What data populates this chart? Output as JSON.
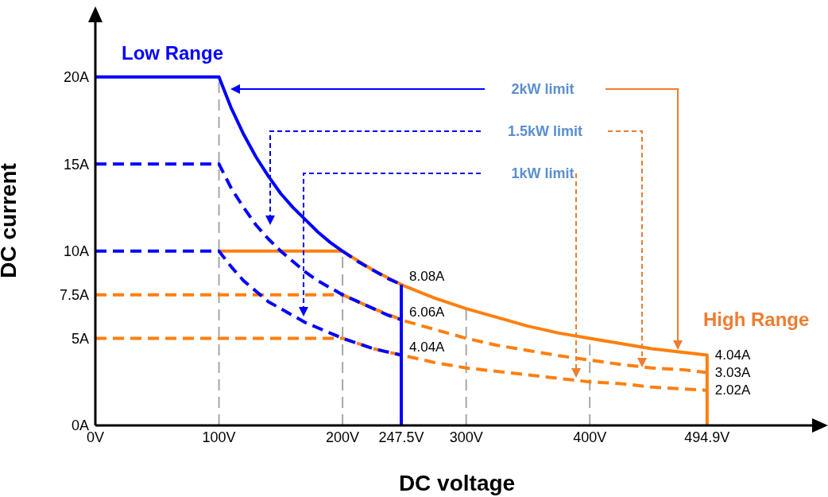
{
  "chart_data": {
    "type": "line",
    "xlabel": "DC voltage",
    "ylabel": "DC current",
    "xlim": [
      0,
      585
    ],
    "ylim": [
      0,
      23.5
    ],
    "xticks": [
      {
        "value": 0,
        "label": "0V"
      },
      {
        "value": 100,
        "label": "100V"
      },
      {
        "value": 200,
        "label": "200V"
      },
      {
        "value": 247.5,
        "label": "247.5V"
      },
      {
        "value": 300,
        "label": "300V"
      },
      {
        "value": 400,
        "label": "400V"
      },
      {
        "value": 494.9,
        "label": "494.9V"
      }
    ],
    "yticks": [
      {
        "value": 0,
        "label": "0A"
      },
      {
        "value": 5,
        "label": "5A"
      },
      {
        "value": 7.5,
        "label": "7.5A"
      },
      {
        "value": 10,
        "label": "10A"
      },
      {
        "value": 15,
        "label": "15A"
      },
      {
        "value": 20,
        "label": "20A"
      }
    ],
    "series": [
      {
        "color": "#ff7f0e",
        "line_style": "solid",
        "x": [
          100,
          200,
          225,
          250,
          275,
          300,
          325,
          350,
          375,
          400,
          425,
          450,
          475,
          494.9,
          494.9
        ],
        "values": [
          10,
          10,
          8.9,
          8,
          7.3,
          6.7,
          6.2,
          5.7,
          5.3,
          5,
          4.7,
          4.4,
          4.2,
          4.04,
          0
        ],
        "value_labels": [
          null,
          null,
          null,
          null,
          null,
          null,
          null,
          null,
          null,
          null,
          null,
          null,
          null,
          "4.04A",
          null
        ]
      },
      {
        "color": "#ff7f0e",
        "line_style": "dashed",
        "x": [
          0,
          200,
          225,
          250,
          275,
          300,
          325,
          350,
          375,
          400,
          425,
          450,
          475,
          494.9
        ],
        "values": [
          7.5,
          7.5,
          6.7,
          6,
          5.5,
          5,
          4.6,
          4.3,
          4,
          3.75,
          3.5,
          3.3,
          3.2,
          3.03
        ],
        "value_labels": [
          null,
          null,
          null,
          null,
          null,
          null,
          null,
          null,
          null,
          null,
          null,
          null,
          null,
          "3.03A"
        ]
      },
      {
        "color": "#ff7f0e",
        "line_style": "dashed",
        "x": [
          0,
          200,
          225,
          250,
          275,
          300,
          325,
          350,
          375,
          400,
          425,
          450,
          475,
          494.9
        ],
        "values": [
          5,
          5,
          4.4,
          4,
          3.6,
          3.3,
          3.1,
          2.9,
          2.7,
          2.5,
          2.4,
          2.2,
          2.1,
          2.02
        ],
        "value_labels": [
          null,
          null,
          null,
          null,
          null,
          null,
          null,
          null,
          null,
          null,
          null,
          null,
          null,
          "2.02A"
        ]
      },
      {
        "color": "#0000ff",
        "line_style": "solid",
        "x": [
          0,
          100,
          110,
          120,
          130,
          140,
          150,
          160,
          170,
          180,
          190,
          200
        ],
        "values": [
          20,
          20,
          18.2,
          16.7,
          15.4,
          14.3,
          13.3,
          12.5,
          11.8,
          11.1,
          10.5,
          10
        ]
      },
      {
        "color": "#0000ff",
        "line_style": "dashed",
        "x": [
          200,
          212.5,
          225,
          237.5,
          247.5
        ],
        "values": [
          10,
          9.4,
          8.9,
          8.4,
          8.08
        ],
        "value_labels": [
          null,
          null,
          null,
          null,
          "8.08A"
        ]
      },
      {
        "color": "#0000ff",
        "line_style": "solid",
        "x": [
          247.5,
          247.5
        ],
        "values": [
          8.08,
          0
        ]
      },
      {
        "color": "#0000ff",
        "line_style": "dashed",
        "x": [
          0,
          100,
          110,
          120,
          130,
          140,
          150,
          160,
          170,
          180,
          190,
          200,
          212.5,
          225,
          237.5,
          247.5
        ],
        "values": [
          15,
          15,
          13.6,
          12.5,
          11.5,
          10.7,
          10,
          9.4,
          8.8,
          8.3,
          7.9,
          7.5,
          7.1,
          6.7,
          6.3,
          6.06
        ],
        "value_labels": [
          null,
          null,
          null,
          null,
          null,
          null,
          null,
          null,
          null,
          null,
          null,
          null,
          null,
          null,
          null,
          "6.06A"
        ]
      },
      {
        "color": "#0000ff",
        "line_style": "dashed",
        "x": [
          0,
          100,
          110,
          120,
          130,
          140,
          150,
          160,
          170,
          180,
          190,
          200,
          212.5,
          225,
          237.5,
          247.5
        ],
        "values": [
          10,
          10,
          9.1,
          8.3,
          7.7,
          7.1,
          6.7,
          6.3,
          5.9,
          5.6,
          5.3,
          5,
          4.7,
          4.4,
          4.2,
          4.04
        ],
        "value_labels": [
          null,
          null,
          null,
          null,
          null,
          null,
          null,
          null,
          null,
          null,
          null,
          null,
          null,
          null,
          null,
          "4.04A"
        ]
      }
    ],
    "ref_lines": [
      {
        "axis": "x",
        "value": 100,
        "color": "#a6a6a6",
        "line_style": "dashed"
      },
      {
        "axis": "x",
        "value": 200,
        "color": "#a6a6a6",
        "line_style": "dashed"
      },
      {
        "axis": "x",
        "value": 300,
        "color": "#a6a6a6",
        "line_style": "dashed"
      },
      {
        "axis": "x",
        "value": 400,
        "color": "#a6a6a6",
        "line_style": "dashed"
      }
    ],
    "annotations": [
      "Low Range",
      "High Range",
      "2kW limit",
      "1.5kW limit",
      "1kW limit"
    ]
  }
}
